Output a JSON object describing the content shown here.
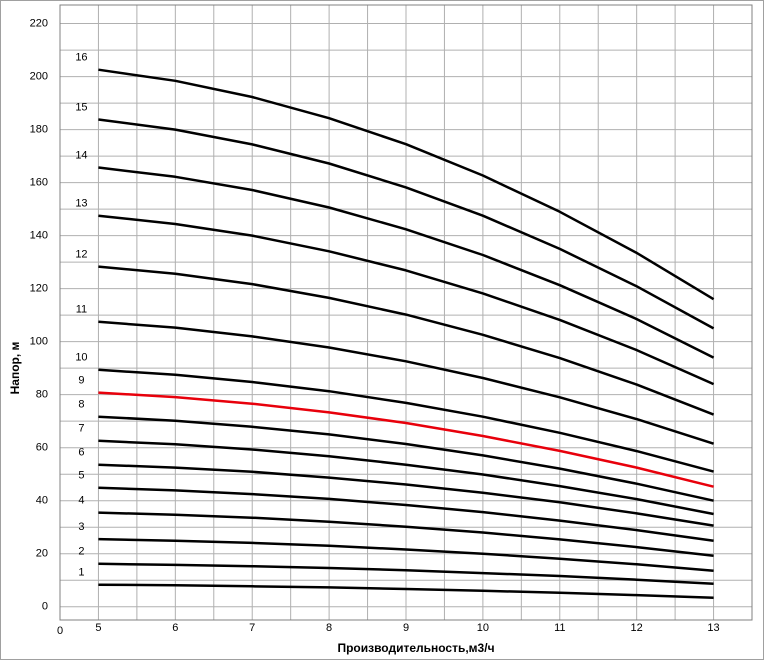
{
  "chart_data": {
    "type": "line",
    "x_label": "Производительность,м3/ч",
    "y_label": "Напор, м",
    "origin_label": "0",
    "x": [
      5,
      6,
      7,
      8,
      9,
      10,
      11,
      12,
      13
    ],
    "xlim": [
      4.5,
      13.5
    ],
    "xticks": [
      5,
      6,
      7,
      8,
      9,
      10,
      11,
      12,
      13
    ],
    "ylim": [
      -5,
      227
    ],
    "yticks": [
      0,
      20,
      40,
      60,
      80,
      100,
      120,
      140,
      160,
      180,
      200,
      220
    ],
    "grid": true,
    "minor_grid": true,
    "series": [
      {
        "name": "1",
        "color": "#000000",
        "values": [
          8.3,
          8.1,
          7.7,
          7.3,
          6.7,
          6.0,
          5.3,
          4.4,
          3.4
        ]
      },
      {
        "name": "2",
        "color": "#000000",
        "values": [
          16.2,
          15.8,
          15.3,
          14.6,
          13.8,
          12.7,
          11.6,
          10.2,
          8.7
        ]
      },
      {
        "name": "3",
        "color": "#000000",
        "values": [
          25.5,
          24.9,
          24.1,
          23.0,
          21.6,
          20.0,
          18.1,
          16.0,
          13.6
        ]
      },
      {
        "name": "4",
        "color": "#000000",
        "values": [
          35.5,
          34.7,
          33.6,
          32.1,
          30.2,
          28.0,
          25.4,
          22.5,
          19.2
        ]
      },
      {
        "name": "5",
        "color": "#000000",
        "values": [
          44.9,
          43.9,
          42.5,
          40.7,
          38.4,
          35.7,
          32.5,
          28.9,
          24.9
        ]
      },
      {
        "name": "6",
        "color": "#000000",
        "values": [
          53.6,
          52.5,
          50.9,
          48.7,
          46.1,
          43.0,
          39.4,
          35.2,
          30.6
        ]
      },
      {
        "name": "7",
        "color": "#000000",
        "values": [
          62.6,
          61.3,
          59.3,
          56.8,
          53.6,
          49.9,
          45.5,
          40.6,
          35
        ]
      },
      {
        "name": "8",
        "color": "#000000",
        "values": [
          71.7,
          70.2,
          67.9,
          65.0,
          61.4,
          57.1,
          52.1,
          46.4,
          40
        ]
      },
      {
        "name": "9",
        "color": "#e8000b",
        "values": [
          80.8,
          79.1,
          76.6,
          73.3,
          69.3,
          64.4,
          58.8,
          52.5,
          45.3
        ]
      },
      {
        "name": "10",
        "color": "#000000",
        "values": [
          89.4,
          87.5,
          84.8,
          81.3,
          76.9,
          71.7,
          65.6,
          58.7,
          51
        ]
      },
      {
        "name": "11",
        "color": "#000000",
        "values": [
          107.5,
          105.3,
          102.0,
          97.8,
          92.6,
          86.3,
          79.0,
          70.8,
          61.5
        ]
      },
      {
        "name": "12",
        "color": "#000000",
        "values": [
          128.3,
          125.6,
          121.7,
          116.5,
          110.2,
          102.6,
          93.8,
          83.8,
          72.5
        ]
      },
      {
        "name": "13",
        "color": "#000000",
        "values": [
          147.5,
          144.4,
          140.0,
          134.1,
          126.9,
          118.2,
          108.2,
          96.8,
          84
        ]
      },
      {
        "name": "14",
        "color": "#000000",
        "values": [
          165.7,
          162.2,
          157.2,
          150.6,
          142.4,
          132.7,
          121.3,
          108.5,
          94
        ]
      },
      {
        "name": "15",
        "color": "#000000",
        "values": [
          183.8,
          180.0,
          174.4,
          167.2,
          158.2,
          147.5,
          135.0,
          120.9,
          105
        ]
      },
      {
        "name": "16",
        "color": "#000000",
        "values": [
          202.6,
          198.4,
          192.3,
          184.3,
          174.5,
          162.7,
          149.0,
          133.5,
          116
        ]
      }
    ]
  }
}
